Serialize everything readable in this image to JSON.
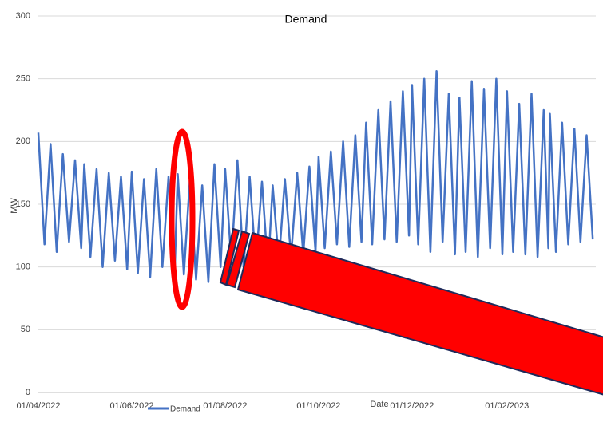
{
  "chart_data": {
    "type": "line",
    "title": "Demand",
    "x_label": "Date",
    "y_label": "MW",
    "x": [
      "01/04/2022",
      "05/04/2022",
      "09/04/2022",
      "13/04/2022",
      "17/04/2022",
      "21/04/2022",
      "25/04/2022",
      "29/04/2022",
      "01/05/2022",
      "05/05/2022",
      "09/05/2022",
      "13/05/2022",
      "17/05/2022",
      "21/05/2022",
      "25/05/2022",
      "29/05/2022",
      "01/06/2022",
      "05/06/2022",
      "09/06/2022",
      "13/06/2022",
      "17/06/2022",
      "21/06/2022",
      "25/06/2022",
      "29/06/2022",
      "01/07/2022",
      "05/07/2022",
      "09/07/2022",
      "13/07/2022",
      "17/07/2022",
      "21/07/2022",
      "25/07/2022",
      "29/07/2022",
      "01/08/2022",
      "05/08/2022",
      "09/08/2022",
      "13/08/2022",
      "17/08/2022",
      "21/08/2022",
      "25/08/2022",
      "29/08/2022",
      "01/09/2022",
      "05/09/2022",
      "09/09/2022",
      "13/09/2022",
      "17/09/2022",
      "21/09/2022",
      "25/09/2022",
      "29/09/2022",
      "01/10/2022",
      "05/10/2022",
      "09/10/2022",
      "13/10/2022",
      "17/10/2022",
      "21/10/2022",
      "25/10/2022",
      "29/10/2022",
      "01/11/2022",
      "05/11/2022",
      "09/11/2022",
      "13/11/2022",
      "17/11/2022",
      "21/11/2022",
      "25/11/2022",
      "29/11/2022",
      "01/12/2022",
      "05/12/2022",
      "09/12/2022",
      "13/12/2022",
      "17/12/2022",
      "21/12/2022",
      "25/12/2022",
      "29/12/2022",
      "01/01/2023",
      "05/01/2023",
      "09/01/2023",
      "13/01/2023",
      "17/01/2023",
      "21/01/2023",
      "25/01/2023",
      "29/01/2023",
      "01/02/2023",
      "05/02/2023",
      "09/02/2023",
      "13/02/2023",
      "17/02/2023",
      "21/02/2023",
      "25/02/2023",
      "28/02/2023",
      "01/03/2023",
      "05/03/2023",
      "09/03/2023",
      "13/03/2023",
      "17/03/2023",
      "21/03/2023",
      "25/03/2023",
      "29/03/2023"
    ],
    "series": [
      {
        "name": "Demand",
        "color": "#4472c4",
        "values": [
          207,
          118,
          198,
          112,
          190,
          120,
          185,
          115,
          182,
          108,
          178,
          100,
          175,
          105,
          172,
          98,
          176,
          95,
          170,
          92,
          178,
          100,
          172,
          96,
          174,
          94,
          170,
          90,
          165,
          88,
          182,
          100,
          178,
          105,
          185,
          100,
          172,
          102,
          168,
          98,
          165,
          104,
          170,
          108,
          175,
          110,
          180,
          112,
          188,
          115,
          192,
          118,
          200,
          116,
          205,
          120,
          215,
          118,
          225,
          122,
          232,
          120,
          240,
          125,
          245,
          118,
          250,
          112,
          256,
          120,
          238,
          110,
          235,
          112,
          248,
          108,
          242,
          115,
          250,
          110,
          240,
          112,
          230,
          110,
          238,
          108,
          225,
          115,
          222,
          112,
          215,
          118,
          210,
          120,
          205,
          122
        ]
      }
    ],
    "xlim": [
      "01/04/2022",
      "31/03/2023"
    ],
    "xticks": [
      "01/04/2022",
      "01/06/2022",
      "01/08/2022",
      "01/10/2022",
      "01/12/2022",
      "01/02/2023"
    ],
    "ylim": [
      0,
      300
    ],
    "yticks": [
      0,
      50,
      100,
      150,
      200,
      250,
      300
    ],
    "grid": true,
    "legend": "bottom"
  }
}
